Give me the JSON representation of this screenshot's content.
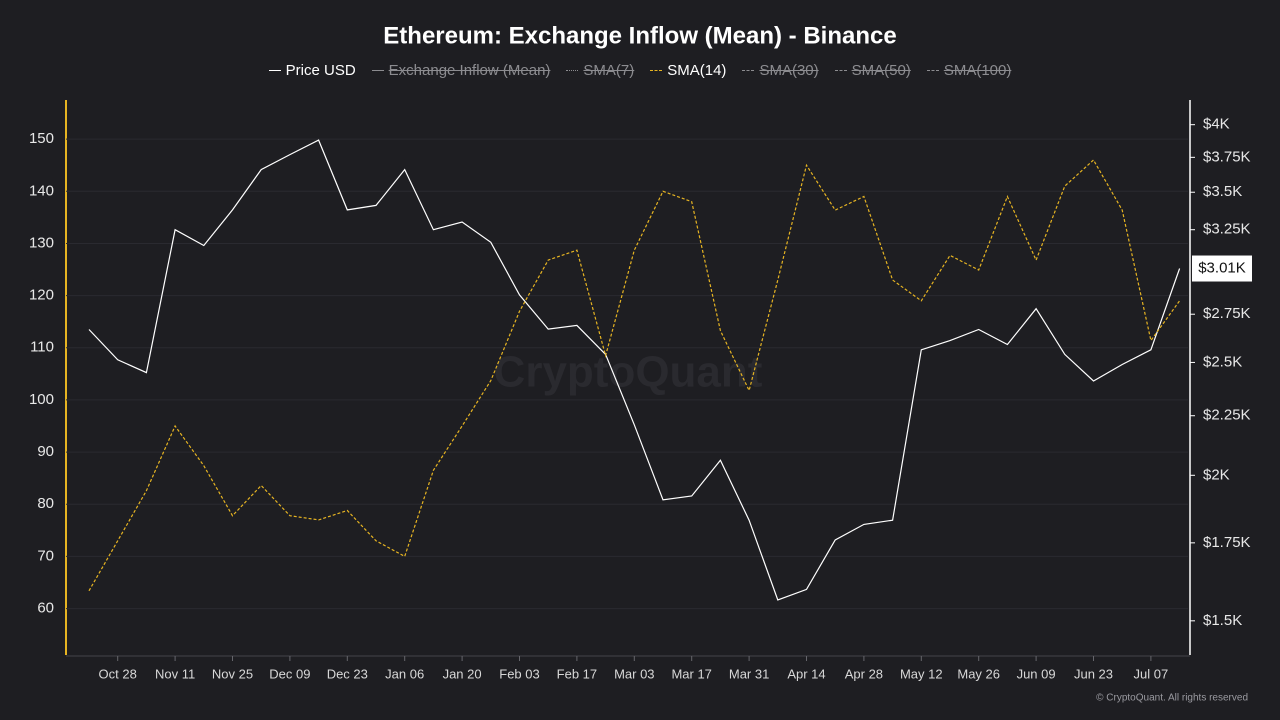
{
  "chart_data": {
    "type": "line",
    "title": "Ethereum: Exchange Inflow (Mean) - Binance",
    "watermark": "CryptoQuant",
    "credit": "© CryptoQuant. All rights reserved",
    "categories": [
      null,
      "Oct 28",
      null,
      "Nov 11",
      null,
      "Nov 25",
      null,
      "Dec 09",
      null,
      "Dec 23",
      null,
      "Jan 06",
      null,
      "Jan 20",
      null,
      "Feb 03",
      null,
      "Feb 17",
      null,
      "Mar 03",
      null,
      "Mar 17",
      null,
      "Mar 31",
      null,
      "Apr 14",
      null,
      "Apr 28",
      null,
      "May 12",
      null,
      "May 26",
      null,
      "Jun 09",
      null,
      "Jun 23",
      null,
      "Jul 07",
      null
    ],
    "series": [
      {
        "name": "Price USD",
        "color": "#ffffff",
        "style": "solid",
        "axis": "y2",
        "values": [
          2668,
          2513,
          2450,
          3250,
          3150,
          3380,
          3660,
          3770,
          3880,
          3380,
          3410,
          3660,
          3250,
          3300,
          3170,
          2857,
          2670,
          2690,
          2540,
          2210,
          1905,
          1920,
          2060,
          1830,
          1563,
          1596,
          1760,
          1815,
          1830,
          2563,
          2610,
          2668,
          2590,
          2780,
          2540,
          2410,
          2490,
          2563,
          3010
        ],
        "value_labels": [
          null,
          null,
          null,
          null,
          null,
          null,
          null,
          null,
          null,
          null,
          null,
          null,
          null,
          null,
          null,
          null,
          null,
          null,
          null,
          null,
          null,
          null,
          null,
          null,
          null,
          null,
          null,
          null,
          null,
          null,
          null,
          null,
          null,
          null,
          null,
          null,
          null,
          null,
          "$3.01K"
        ]
      },
      {
        "name": "Exchange Inflow (Mean)",
        "color": "#cccccc",
        "style": "solid",
        "hidden": true
      },
      {
        "name": "SMA(7)",
        "color": "#bbbbbb",
        "style": "dotted",
        "hidden": true
      },
      {
        "name": "SMA(14)",
        "color": "#e6b422",
        "style": "dashed",
        "values": [
          63.4,
          73,
          82.6,
          95,
          87.4,
          77.8,
          83.6,
          77.8,
          77,
          78.8,
          73,
          70,
          86.5,
          95,
          103.7,
          117,
          126.8,
          128.7,
          108.5,
          128.7,
          140,
          138,
          113.3,
          101.8,
          123,
          145,
          136.4,
          139,
          123,
          119,
          127.7,
          124.9,
          139,
          126.8,
          141,
          146,
          136.4,
          111.4,
          119
        ]
      },
      {
        "name": "SMA(30)",
        "color": "#bbbbbb",
        "style": "dashed",
        "hidden": true
      },
      {
        "name": "SMA(50)",
        "color": "#bbbbbb",
        "style": "dashed",
        "hidden": true
      },
      {
        "name": "SMA(100)",
        "color": "#bbbbbb",
        "style": "dashed",
        "hidden": true
      }
    ],
    "ylim": [
      51.1,
      157.5
    ],
    "yticks": [
      60,
      70,
      80,
      90,
      100,
      110,
      120,
      130,
      140,
      150
    ],
    "y2lim": [
      1402,
      4200
    ],
    "y2_log": true,
    "y2ticks": [
      {
        "value": 1500,
        "label": "$1.5K"
      },
      {
        "value": 1750,
        "label": "$1.75K"
      },
      {
        "value": 2000,
        "label": "$2K"
      },
      {
        "value": 2250,
        "label": "$2.25K"
      },
      {
        "value": 2500,
        "label": "$2.5K"
      },
      {
        "value": 2750,
        "label": "$2.75K"
      },
      {
        "value": 3250,
        "label": "$3.25K"
      },
      {
        "value": 3500,
        "label": "$3.5K"
      },
      {
        "value": 3750,
        "label": "$3.75K"
      },
      {
        "value": 4000,
        "label": "$4K"
      }
    ],
    "grid": true,
    "legend": "top"
  }
}
